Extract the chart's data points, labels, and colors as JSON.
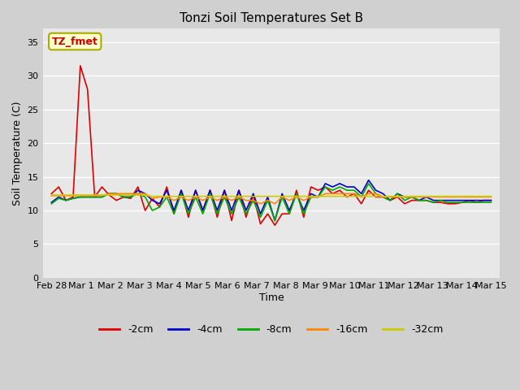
{
  "title": "Tonzi Soil Temperatures Set B",
  "xlabel": "Time",
  "ylabel": "Soil Temperature (C)",
  "ylim": [
    0,
    37
  ],
  "yticks": [
    0,
    5,
    10,
    15,
    20,
    25,
    30,
    35
  ],
  "plot_bg_color": "#e8e8e8",
  "fig_bg_color": "#d0d0d0",
  "annotation_text": "TZ_fmet",
  "annotation_color": "#cc0000",
  "annotation_bg": "#ffffcc",
  "annotation_edge": "#aaaa00",
  "series_colors": [
    "#dd0000",
    "#0000cc",
    "#00aa00",
    "#ff8800",
    "#cccc00"
  ],
  "series_labels": [
    "-2cm",
    "-4cm",
    "-8cm",
    "-16cm",
    "-32cm"
  ],
  "x_tick_labels": [
    "Feb 28",
    "Mar 1",
    "Mar 2",
    "Mar 3",
    "Mar 4",
    "Mar 5",
    "Mar 6",
    "Mar 7",
    "Mar 8",
    "Mar 9",
    "Mar 10",
    "Mar 11",
    "Mar 12",
    "Mar 13",
    "Mar 14",
    "Mar 15"
  ],
  "data_2cm": [
    12.5,
    13.5,
    11.5,
    12.0,
    31.5,
    28.0,
    12.0,
    13.5,
    12.3,
    11.5,
    12.0,
    11.8,
    13.5,
    10.0,
    11.8,
    10.5,
    13.5,
    9.5,
    13.0,
    9.0,
    13.0,
    10.0,
    13.0,
    9.0,
    13.0,
    8.5,
    13.0,
    9.0,
    12.3,
    8.0,
    9.5,
    7.8,
    9.5,
    9.5,
    13.0,
    9.0,
    13.5,
    13.0,
    13.5,
    12.5,
    13.0,
    12.0,
    12.5,
    11.0,
    13.0,
    12.0,
    12.0,
    11.5,
    12.0,
    11.0,
    11.5,
    11.5,
    11.5,
    11.2,
    11.2,
    11.0,
    11.0,
    11.2,
    11.5,
    11.2,
    11.5,
    11.5
  ],
  "data_4cm": [
    11.2,
    12.0,
    11.5,
    11.8,
    12.0,
    12.0,
    12.0,
    12.0,
    12.5,
    12.5,
    12.0,
    12.0,
    13.0,
    12.5,
    11.5,
    11.0,
    13.0,
    10.0,
    13.0,
    10.0,
    13.0,
    10.0,
    13.0,
    10.0,
    13.0,
    10.0,
    13.0,
    10.0,
    12.5,
    9.5,
    12.0,
    8.5,
    12.5,
    10.0,
    12.5,
    10.0,
    12.5,
    12.0,
    14.0,
    13.5,
    14.0,
    13.5,
    13.5,
    12.5,
    14.5,
    13.0,
    12.5,
    11.5,
    12.5,
    12.0,
    12.0,
    11.5,
    12.0,
    11.5,
    11.5,
    11.5,
    11.5,
    11.5,
    11.5,
    11.5,
    11.5,
    11.5
  ],
  "data_8cm": [
    11.0,
    11.8,
    11.5,
    11.8,
    12.0,
    12.0,
    12.0,
    12.0,
    12.5,
    12.5,
    12.0,
    12.0,
    12.5,
    12.0,
    10.0,
    10.5,
    12.0,
    9.5,
    12.5,
    9.5,
    12.0,
    9.5,
    12.5,
    9.5,
    12.0,
    9.5,
    12.0,
    9.5,
    11.5,
    9.0,
    11.5,
    8.5,
    12.0,
    9.5,
    12.5,
    9.5,
    12.0,
    12.0,
    13.5,
    13.0,
    13.5,
    13.0,
    13.0,
    12.0,
    14.0,
    12.5,
    12.0,
    11.5,
    12.5,
    11.5,
    12.0,
    11.5,
    11.5,
    11.2,
    11.5,
    11.2,
    11.2,
    11.2,
    11.2,
    11.2,
    11.2,
    11.2
  ],
  "data_16cm": [
    12.2,
    12.2,
    12.2,
    12.2,
    12.2,
    12.2,
    12.2,
    12.2,
    12.5,
    12.5,
    12.5,
    12.5,
    12.5,
    12.5,
    11.8,
    12.0,
    12.0,
    11.5,
    12.0,
    11.5,
    12.0,
    11.5,
    12.0,
    11.5,
    12.0,
    11.5,
    12.0,
    11.5,
    11.5,
    11.0,
    11.5,
    11.0,
    12.0,
    11.5,
    12.0,
    11.5,
    12.0,
    12.0,
    12.5,
    12.5,
    12.5,
    12.5,
    12.5,
    12.0,
    12.5,
    12.5,
    12.0,
    12.0,
    12.0,
    12.0,
    12.0,
    12.0,
    12.0,
    12.0,
    12.0,
    12.0,
    12.0,
    12.0,
    12.0,
    12.0,
    12.0,
    12.0
  ],
  "data_32cm": [
    12.3,
    12.3,
    12.3,
    12.3,
    12.3,
    12.3,
    12.3,
    12.3,
    12.3,
    12.3,
    12.3,
    12.3,
    12.3,
    12.3,
    12.1,
    12.1,
    12.1,
    12.1,
    12.1,
    12.1,
    12.1,
    12.1,
    12.1,
    12.1,
    12.1,
    12.1,
    12.1,
    12.1,
    12.1,
    12.1,
    12.1,
    12.1,
    12.1,
    12.1,
    12.1,
    12.1,
    12.1,
    12.1,
    12.1,
    12.1,
    12.1,
    12.1,
    12.1,
    12.1,
    12.1,
    12.1,
    12.1,
    12.1,
    12.1,
    12.1,
    12.1,
    12.1,
    12.1,
    12.1,
    12.1,
    12.1,
    12.1,
    12.1,
    12.1,
    12.1,
    12.1,
    12.1
  ]
}
